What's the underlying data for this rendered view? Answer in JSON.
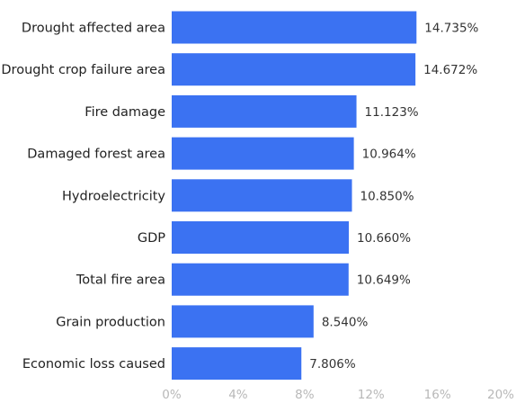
{
  "chart_data": {
    "type": "bar",
    "orientation": "horizontal",
    "categories": [
      "Drought affected area",
      "Drought crop failure area",
      "Fire damage",
      "Damaged forest area",
      "Hydroelectricity",
      "GDP",
      "Total fire area",
      "Grain production",
      "Economic loss caused"
    ],
    "values": [
      14.735,
      14.672,
      11.123,
      10.964,
      10.85,
      10.66,
      10.649,
      8.54,
      7.806
    ],
    "value_labels": [
      "14.735%",
      "14.672%",
      "11.123%",
      "10.964%",
      "10.850%",
      "10.660%",
      "10.649%",
      "8.540%",
      "7.806%"
    ],
    "xticks": [
      0,
      4,
      8,
      12,
      16,
      20
    ],
    "xtick_labels": [
      "0%",
      "4%",
      "8%",
      "12%",
      "16%",
      "20%"
    ],
    "xlim": [
      0,
      20
    ],
    "grid": false,
    "bar_color": "#3b72f2"
  }
}
